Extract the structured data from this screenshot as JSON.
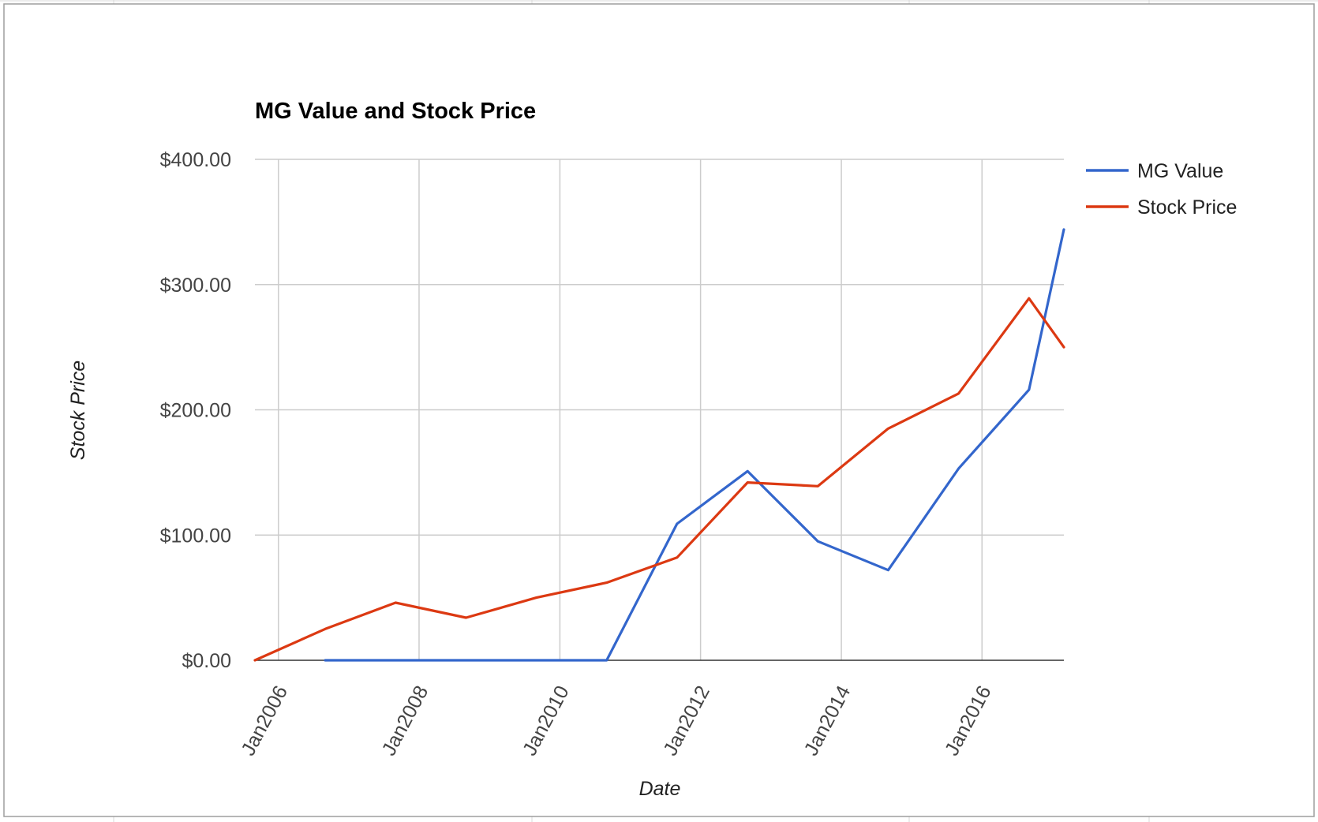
{
  "chart_data": {
    "type": "line",
    "title": "MG Value and Stock Price",
    "xlabel": "Date",
    "ylabel": "Stock Price",
    "x_ticks": [
      "Jan2006",
      "Jan2008",
      "Jan2010",
      "Jan2012",
      "Jan2014",
      "Jan2016"
    ],
    "y_ticks": [
      "$0.00",
      "$100.00",
      "$200.00",
      "$300.00",
      "$400.00"
    ],
    "xlim": [
      "2005-09-01",
      "2017-03-01"
    ],
    "ylim": [
      0,
      400
    ],
    "grid": true,
    "legend_position": "right",
    "series": [
      {
        "name": "MG Value",
        "color": "#3366cc",
        "points": [
          {
            "x": "2006-09-01",
            "y": 0
          },
          {
            "x": "2007-09-01",
            "y": 0
          },
          {
            "x": "2008-09-01",
            "y": 0
          },
          {
            "x": "2009-09-01",
            "y": 0
          },
          {
            "x": "2010-09-01",
            "y": 0
          },
          {
            "x": "2011-09-01",
            "y": 109
          },
          {
            "x": "2012-09-01",
            "y": 151
          },
          {
            "x": "2013-09-01",
            "y": 95
          },
          {
            "x": "2014-09-01",
            "y": 72
          },
          {
            "x": "2015-09-01",
            "y": 153
          },
          {
            "x": "2016-09-01",
            "y": 216
          },
          {
            "x": "2017-03-01",
            "y": 344
          }
        ]
      },
      {
        "name": "Stock Price",
        "color": "#dc3912",
        "points": [
          {
            "x": "2005-09-01",
            "y": 0
          },
          {
            "x": "2006-09-01",
            "y": 25
          },
          {
            "x": "2007-09-01",
            "y": 46
          },
          {
            "x": "2008-09-01",
            "y": 34
          },
          {
            "x": "2009-09-01",
            "y": 50
          },
          {
            "x": "2010-09-01",
            "y": 62
          },
          {
            "x": "2011-09-01",
            "y": 82
          },
          {
            "x": "2012-09-01",
            "y": 142
          },
          {
            "x": "2013-09-01",
            "y": 139
          },
          {
            "x": "2014-09-01",
            "y": 185
          },
          {
            "x": "2015-09-01",
            "y": 213
          },
          {
            "x": "2016-09-01",
            "y": 289
          },
          {
            "x": "2017-03-01",
            "y": 250
          }
        ]
      }
    ]
  }
}
